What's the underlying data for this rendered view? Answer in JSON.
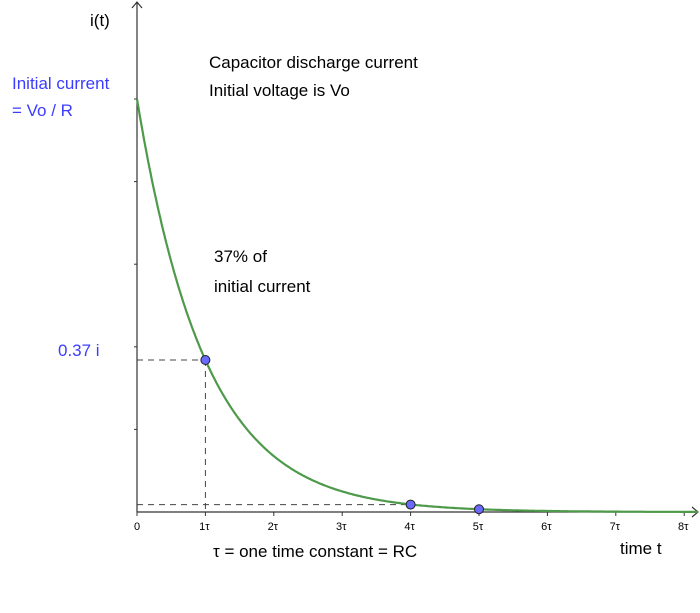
{
  "chart_data": {
    "type": "line",
    "title_lines": [
      "Capacitor discharge current",
      "Initial voltage is Vo"
    ],
    "ylabel": "i(t)",
    "xlabel": "time t",
    "x_note": "τ = one time constant = RC",
    "y_annotation": [
      "Initial current",
      "= Vo / R"
    ],
    "y_marker_label": "0.37 i",
    "point_annotation": [
      "37% of",
      "initial current"
    ],
    "x_ticks": [
      0,
      1,
      2,
      3,
      4,
      5,
      6,
      7,
      8
    ],
    "x_tick_labels": [
      "0",
      "1τ",
      "2τ",
      "3τ",
      "4τ",
      "5τ",
      "6τ",
      "7τ",
      "8τ"
    ],
    "xlim": [
      0,
      8.2
    ],
    "ylim": [
      0,
      1
    ],
    "y_minor_ticks": [
      0.2,
      0.4,
      0.6,
      0.8,
      1.0
    ],
    "series": [
      {
        "function": "i(t) = e^(-t/τ)",
        "color": "#4e9a4a",
        "x_range": [
          0,
          8.2
        ]
      }
    ],
    "points": [
      {
        "x": 1,
        "y": 0.368
      },
      {
        "x": 4,
        "y": 0.018
      },
      {
        "x": 5,
        "y": 0.0067
      }
    ],
    "point_color": "#6a6aff",
    "annotation_color": "#3c3cff"
  }
}
